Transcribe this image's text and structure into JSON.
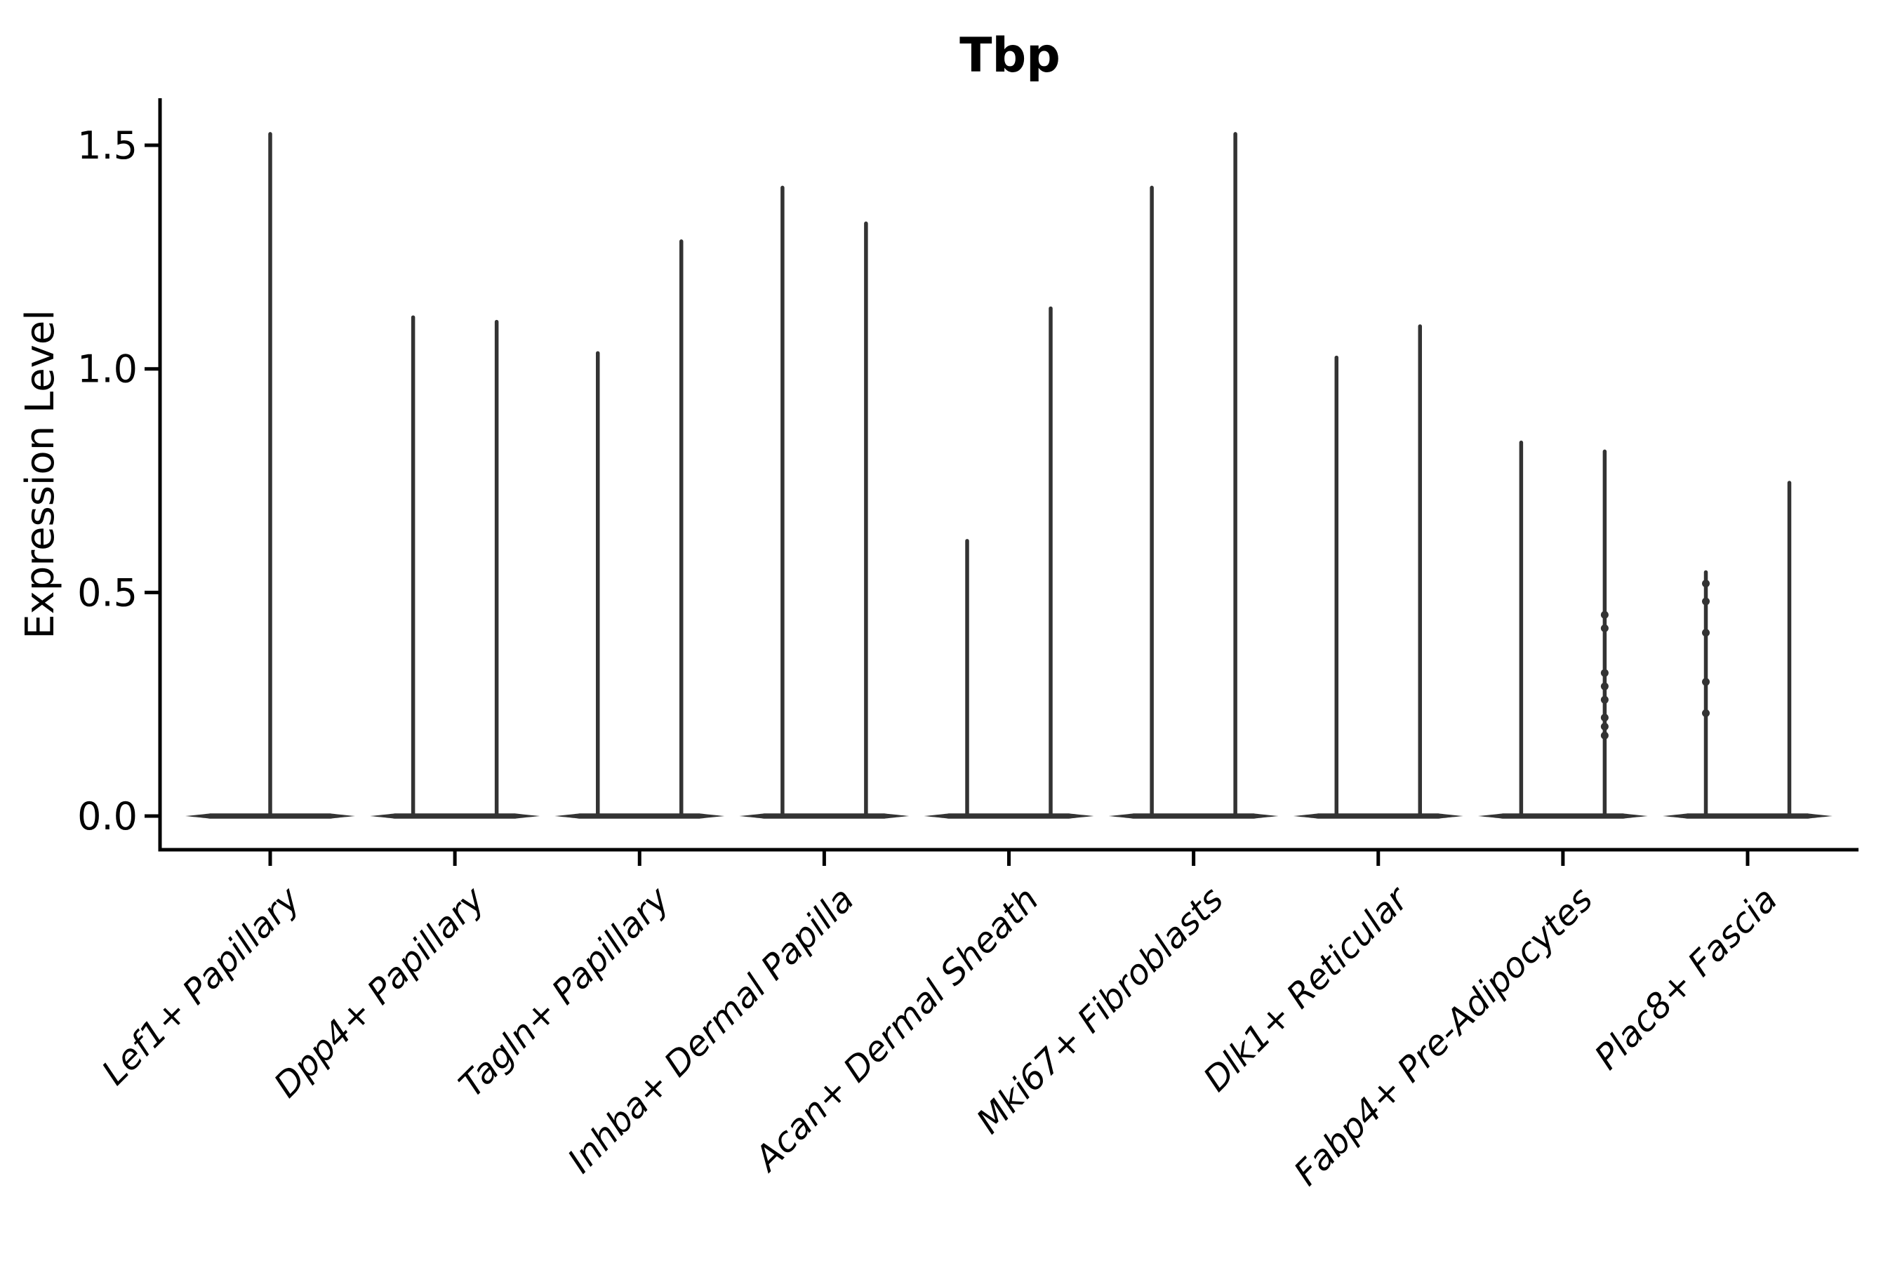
{
  "figure": {
    "background_color": "#ffffff",
    "axis_color": "#000000",
    "violin_color": "#333333",
    "text_color": "#000000"
  },
  "chart_data": {
    "type": "violin",
    "title": "Tbp",
    "title_weight": "bold",
    "xlabel": "",
    "ylabel": "Expression Level",
    "ylim": [
      -0.08,
      1.61
    ],
    "yticks": [
      "0.0",
      "0.5",
      "1.0",
      "1.5"
    ],
    "ytick_values": [
      0.0,
      0.5,
      1.0,
      1.5
    ],
    "grid": false,
    "legend": "none",
    "orientation": "vertical",
    "x_tick_rotation_deg": 45,
    "x_tick_fontstyle": "italic",
    "distribution_note": "Each violin is an extremely narrow density: a wide flat mass at expression 0 with a thin vertical tail reaching max_expression.",
    "categories": [
      "Lef1+ Papillary",
      "Dpp4+ Papillary",
      "Tagln+ Papillary",
      "Inhba+ Dermal Papilla",
      "Acan+ Dermal Sheath",
      "Mki67+ Fibroblasts",
      "Dlk1+ Reticular",
      "Fabp4+ Pre-Adipocytes",
      "Plac8+ Fascia"
    ],
    "violins": [
      {
        "category": "Lef1+ Papillary",
        "group_violins": [
          {
            "max_expression": 1.53,
            "points": []
          }
        ]
      },
      {
        "category": "Dpp4+ Papillary",
        "group_violins": [
          {
            "max_expression": 1.12,
            "points": []
          },
          {
            "max_expression": 1.11,
            "points": []
          }
        ]
      },
      {
        "category": "Tagln+ Papillary",
        "group_violins": [
          {
            "max_expression": 1.04,
            "points": []
          },
          {
            "max_expression": 1.29,
            "points": []
          }
        ]
      },
      {
        "category": "Inhba+ Dermal Papilla",
        "group_violins": [
          {
            "max_expression": 1.41,
            "points": []
          },
          {
            "max_expression": 1.33,
            "points": []
          }
        ]
      },
      {
        "category": "Acan+ Dermal Sheath",
        "group_violins": [
          {
            "max_expression": 0.62,
            "points": []
          },
          {
            "max_expression": 1.14,
            "points": []
          }
        ]
      },
      {
        "category": "Mki67+ Fibroblasts",
        "group_violins": [
          {
            "max_expression": 1.41,
            "points": []
          },
          {
            "max_expression": 1.53,
            "points": []
          }
        ]
      },
      {
        "category": "Dlk1+ Reticular",
        "group_violins": [
          {
            "max_expression": 1.03,
            "points": []
          },
          {
            "max_expression": 1.1,
            "points": []
          }
        ]
      },
      {
        "category": "Fabp4+ Pre-Adipocytes",
        "group_violins": [
          {
            "max_expression": 0.84,
            "points": []
          },
          {
            "max_expression": 0.82,
            "points": [
              0.45,
              0.42,
              0.32,
              0.29,
              0.26,
              0.22,
              0.2,
              0.18
            ]
          }
        ]
      },
      {
        "category": "Plac8+ Fascia",
        "group_violins": [
          {
            "max_expression": 0.55,
            "points": [
              0.52,
              0.48,
              0.41,
              0.3,
              0.23
            ]
          },
          {
            "max_expression": 0.75,
            "points": []
          }
        ]
      }
    ]
  }
}
